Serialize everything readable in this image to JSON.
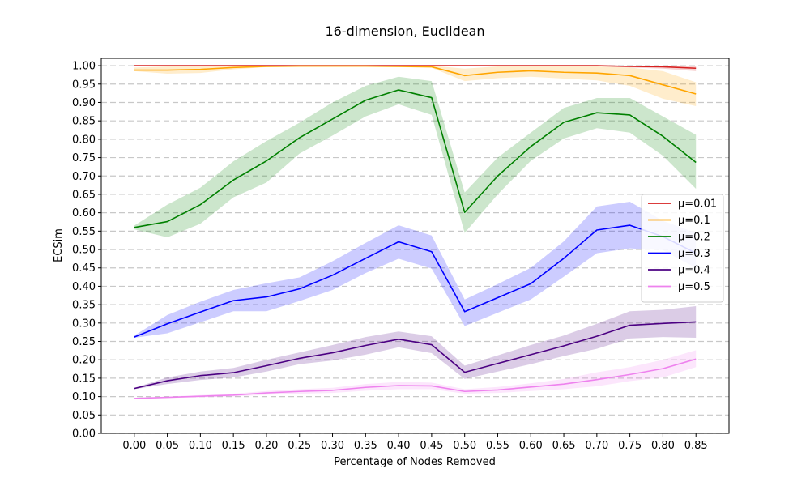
{
  "chart_data": {
    "type": "line",
    "title": "16-dimension, Euclidean",
    "xlabel": "Percentage of Nodes Removed",
    "ylabel": "ECSim",
    "xlim": [
      -0.05,
      0.9
    ],
    "ylim": [
      0.0,
      1.02
    ],
    "grid": "horizontal-dashed",
    "legend_position": "right",
    "x": [
      0.0,
      0.05,
      0.1,
      0.15,
      0.2,
      0.25,
      0.3,
      0.35,
      0.4,
      0.45,
      0.5,
      0.55,
      0.6,
      0.65,
      0.7,
      0.75,
      0.8,
      0.85
    ],
    "x_ticks": [
      "0.00",
      "0.05",
      "0.10",
      "0.15",
      "0.20",
      "0.25",
      "0.30",
      "0.35",
      "0.40",
      "0.45",
      "0.50",
      "0.55",
      "0.60",
      "0.65",
      "0.70",
      "0.75",
      "0.80",
      "0.85"
    ],
    "y_ticks": [
      "0.00",
      "0.05",
      "0.10",
      "0.15",
      "0.20",
      "0.25",
      "0.30",
      "0.35",
      "0.40",
      "0.45",
      "0.50",
      "0.55",
      "0.60",
      "0.65",
      "0.70",
      "0.75",
      "0.80",
      "0.85",
      "0.90",
      "0.95",
      "1.00"
    ],
    "series": [
      {
        "name": "μ=0.01",
        "color": "#d62020",
        "values": [
          1.0,
          1.0,
          1.0,
          1.0,
          1.0,
          1.0,
          1.0,
          1.0,
          1.0,
          1.0,
          1.0,
          1.0,
          1.0,
          1.0,
          1.0,
          0.998,
          0.997,
          0.993
        ],
        "lower": [
          1.0,
          1.0,
          1.0,
          1.0,
          1.0,
          1.0,
          1.0,
          1.0,
          1.0,
          1.0,
          1.0,
          1.0,
          1.0,
          1.0,
          1.0,
          0.995,
          0.992,
          0.985
        ],
        "upper": [
          1.0,
          1.0,
          1.0,
          1.0,
          1.0,
          1.0,
          1.0,
          1.0,
          1.0,
          1.0,
          1.0,
          1.0,
          1.0,
          1.0,
          1.0,
          1.0,
          1.0,
          1.0
        ]
      },
      {
        "name": "μ=0.1",
        "color": "#ffa500",
        "values": [
          0.988,
          0.988,
          0.99,
          0.995,
          0.998,
          0.999,
          0.999,
          0.999,
          0.998,
          0.997,
          0.973,
          0.982,
          0.986,
          0.982,
          0.98,
          0.973,
          0.948,
          0.923
        ],
        "lower": [
          0.985,
          0.978,
          0.98,
          0.99,
          0.996,
          0.997,
          0.997,
          0.997,
          0.996,
          0.994,
          0.958,
          0.966,
          0.97,
          0.965,
          0.96,
          0.945,
          0.91,
          0.89
        ],
        "upper": [
          0.995,
          0.998,
          0.999,
          1.0,
          1.0,
          1.0,
          1.0,
          1.0,
          1.0,
          1.0,
          0.992,
          0.998,
          1.0,
          0.998,
          0.998,
          0.995,
          0.985,
          0.955
        ]
      },
      {
        "name": "μ=0.2",
        "color": "#008000",
        "values": [
          0.56,
          0.576,
          0.622,
          0.689,
          0.741,
          0.804,
          0.855,
          0.906,
          0.934,
          0.913,
          0.601,
          0.7,
          0.78,
          0.846,
          0.872,
          0.866,
          0.808,
          0.737
        ],
        "lower": [
          0.555,
          0.533,
          0.57,
          0.642,
          0.682,
          0.761,
          0.81,
          0.862,
          0.895,
          0.866,
          0.545,
          0.65,
          0.741,
          0.802,
          0.83,
          0.818,
          0.755,
          0.665
        ],
        "upper": [
          0.565,
          0.622,
          0.668,
          0.74,
          0.795,
          0.845,
          0.9,
          0.945,
          0.97,
          0.958,
          0.655,
          0.75,
          0.818,
          0.885,
          0.912,
          0.912,
          0.862,
          0.812
        ]
      },
      {
        "name": "μ=0.3",
        "color": "#0000ff",
        "values": [
          0.262,
          0.298,
          0.33,
          0.361,
          0.371,
          0.393,
          0.43,
          0.476,
          0.521,
          0.494,
          0.331,
          0.369,
          0.407,
          0.476,
          0.553,
          0.566,
          0.535,
          0.49
        ],
        "lower": [
          0.26,
          0.272,
          0.302,
          0.332,
          0.332,
          0.36,
          0.39,
          0.436,
          0.475,
          0.448,
          0.292,
          0.328,
          0.364,
          0.426,
          0.49,
          0.503,
          0.498,
          0.45
        ],
        "upper": [
          0.266,
          0.322,
          0.358,
          0.39,
          0.408,
          0.424,
          0.468,
          0.518,
          0.566,
          0.538,
          0.364,
          0.406,
          0.45,
          0.522,
          0.617,
          0.63,
          0.578,
          0.545
        ]
      },
      {
        "name": "μ=0.4",
        "color": "#4b0082",
        "values": [
          0.122,
          0.143,
          0.157,
          0.165,
          0.184,
          0.204,
          0.219,
          0.239,
          0.256,
          0.241,
          0.166,
          0.19,
          0.214,
          0.238,
          0.264,
          0.294,
          0.299,
          0.303
        ],
        "lower": [
          0.12,
          0.134,
          0.145,
          0.152,
          0.168,
          0.188,
          0.198,
          0.214,
          0.234,
          0.218,
          0.148,
          0.168,
          0.188,
          0.21,
          0.23,
          0.258,
          0.262,
          0.26
        ],
        "upper": [
          0.124,
          0.152,
          0.168,
          0.178,
          0.2,
          0.22,
          0.24,
          0.262,
          0.277,
          0.264,
          0.184,
          0.212,
          0.24,
          0.266,
          0.298,
          0.332,
          0.336,
          0.346
        ]
      },
      {
        "name": "μ=0.5",
        "color": "#ee82ee",
        "values": [
          0.095,
          0.098,
          0.101,
          0.104,
          0.11,
          0.114,
          0.117,
          0.125,
          0.13,
          0.129,
          0.114,
          0.118,
          0.126,
          0.134,
          0.146,
          0.16,
          0.176,
          0.202
        ],
        "lower": [
          0.094,
          0.096,
          0.098,
          0.1,
          0.105,
          0.108,
          0.11,
          0.116,
          0.12,
          0.12,
          0.108,
          0.11,
          0.115,
          0.12,
          0.128,
          0.142,
          0.152,
          0.18
        ],
        "upper": [
          0.097,
          0.1,
          0.104,
          0.108,
          0.115,
          0.12,
          0.124,
          0.134,
          0.14,
          0.138,
          0.12,
          0.126,
          0.136,
          0.148,
          0.166,
          0.18,
          0.2,
          0.226
        ]
      }
    ]
  }
}
